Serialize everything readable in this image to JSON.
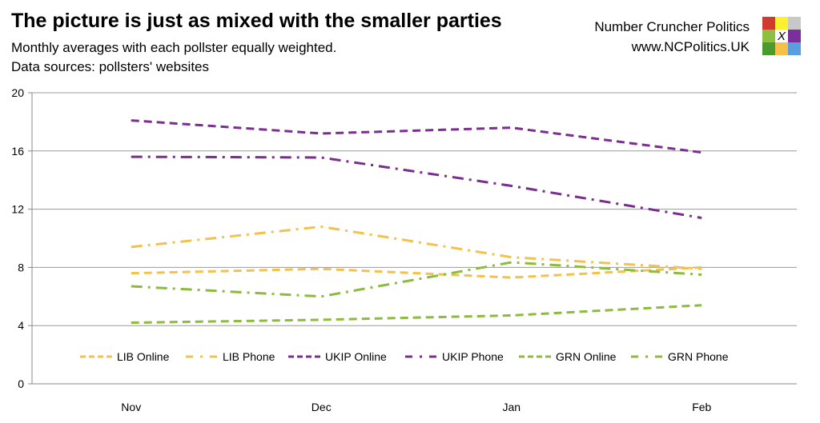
{
  "header": {
    "title": "The picture is just as mixed with the smaller parties",
    "subtitle1": "Monthly averages with each pollster equally weighted.",
    "subtitle2": "Data sources: pollsters' websites",
    "brand_name": "Number Cruncher Politics",
    "brand_url": "www.NCPolitics.UK",
    "logo_letter": "X",
    "logo_colors": [
      "#d13b2f",
      "#fdf033",
      "#c8c8c8",
      "#8fbf3f",
      "#ffffff",
      "#7a2f9a",
      "#4a9a2d",
      "#f5c04a",
      "#5a9ee0"
    ]
  },
  "chart_data": {
    "type": "line",
    "title": "",
    "xlabel": "",
    "ylabel": "",
    "categories": [
      "Nov",
      "Dec",
      "Jan",
      "Feb"
    ],
    "ylim": [
      0,
      20
    ],
    "yticks": [
      0,
      4,
      8,
      12,
      16,
      20
    ],
    "grid": true,
    "legend_placement": "bottom-inside",
    "series": [
      {
        "name": "LIB Online",
        "color": "#f2c14e",
        "dash": "dash",
        "values": [
          7.6,
          7.9,
          7.3,
          8.0
        ]
      },
      {
        "name": "LIB Phone",
        "color": "#f2c14e",
        "dash": "dashdot",
        "values": [
          9.4,
          10.8,
          8.7,
          7.9
        ]
      },
      {
        "name": "UKIP Online",
        "color": "#7a2f8f",
        "dash": "dash",
        "values": [
          18.1,
          17.2,
          17.6,
          15.9
        ]
      },
      {
        "name": "UKIP Phone",
        "color": "#7a2f8f",
        "dash": "dashdot",
        "values": [
          15.6,
          15.55,
          13.6,
          11.4
        ]
      },
      {
        "name": "GRN Online",
        "color": "#8dba3f",
        "dash": "dash",
        "values": [
          4.2,
          4.4,
          4.7,
          5.4
        ]
      },
      {
        "name": "GRN Phone",
        "color": "#8dba3f",
        "dash": "dashdot",
        "values": [
          6.7,
          6.0,
          8.35,
          7.5
        ]
      }
    ]
  }
}
